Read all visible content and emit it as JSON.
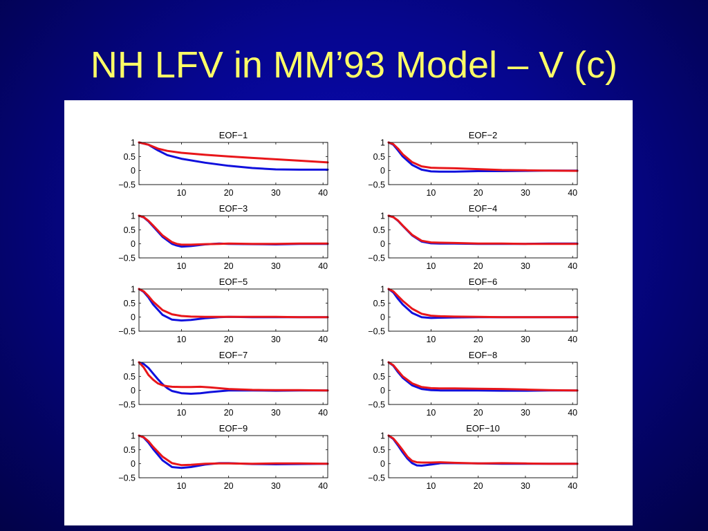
{
  "slide": {
    "title": "NH LFV in MM’93 Model – V (c)"
  },
  "colors": {
    "background": "#06068f",
    "title_text": "#ffff66",
    "series_a": "#1010dd",
    "series_b": "#e8161a"
  },
  "chart_data": [
    {
      "type": "line",
      "title": "EOF−1",
      "xlim": [
        1,
        41
      ],
      "ylim": [
        -0.5,
        1
      ],
      "xticks": [
        10,
        20,
        30,
        40
      ],
      "yticks": [
        1,
        0.5,
        0,
        -0.5
      ],
      "ytick_labels": [
        "1",
        "0.5",
        "0",
        "−0.5"
      ],
      "x": [
        1,
        3,
        5,
        7,
        10,
        15,
        20,
        25,
        30,
        35,
        41
      ],
      "series": [
        {
          "color": "#1010dd",
          "values": [
            1.0,
            0.92,
            0.72,
            0.55,
            0.42,
            0.28,
            0.17,
            0.09,
            0.04,
            0.03,
            0.03
          ]
        },
        {
          "color": "#e8161a",
          "values": [
            1.0,
            0.92,
            0.78,
            0.7,
            0.63,
            0.56,
            0.5,
            0.45,
            0.4,
            0.35,
            0.29
          ]
        }
      ]
    },
    {
      "type": "line",
      "title": "EOF−2",
      "xlim": [
        1,
        41
      ],
      "ylim": [
        -0.5,
        1
      ],
      "xticks": [
        10,
        20,
        30,
        40
      ],
      "yticks": [
        1,
        0.5,
        0,
        -0.5
      ],
      "ytick_labels": [
        "1",
        "0.5",
        "0",
        "−0.5"
      ],
      "x": [
        1,
        2,
        3,
        4,
        6,
        8,
        10,
        12,
        15,
        20,
        25,
        30,
        35,
        41
      ],
      "series": [
        {
          "color": "#1010dd",
          "values": [
            1.0,
            0.92,
            0.72,
            0.5,
            0.2,
            0.03,
            -0.03,
            -0.04,
            -0.04,
            -0.02,
            -0.02,
            -0.01,
            0.0,
            0.0
          ]
        },
        {
          "color": "#e8161a",
          "values": [
            1.0,
            0.94,
            0.78,
            0.58,
            0.3,
            0.15,
            0.1,
            0.09,
            0.08,
            0.05,
            0.02,
            0.01,
            0.0,
            -0.01
          ]
        }
      ]
    },
    {
      "type": "line",
      "title": "EOF−3",
      "xlim": [
        1,
        41
      ],
      "ylim": [
        -0.5,
        1
      ],
      "xticks": [
        10,
        20,
        30,
        40
      ],
      "yticks": [
        1,
        0.5,
        0,
        -0.5
      ],
      "ytick_labels": [
        "1",
        "0.5",
        "0",
        "−0.5"
      ],
      "x": [
        1,
        2,
        3,
        4,
        6,
        8,
        9,
        10,
        12,
        15,
        18,
        20,
        25,
        30,
        35,
        41
      ],
      "series": [
        {
          "color": "#1010dd",
          "values": [
            1.0,
            0.94,
            0.8,
            0.62,
            0.25,
            0.0,
            -0.06,
            -0.1,
            -0.08,
            -0.02,
            0.01,
            0.0,
            -0.01,
            -0.02,
            0.0,
            0.0
          ]
        },
        {
          "color": "#e8161a",
          "values": [
            1.0,
            0.95,
            0.82,
            0.65,
            0.3,
            0.06,
            0.0,
            -0.03,
            -0.03,
            -0.01,
            0.0,
            0.01,
            0.0,
            0.0,
            0.01,
            0.01
          ]
        }
      ]
    },
    {
      "type": "line",
      "title": "EOF−4",
      "xlim": [
        1,
        41
      ],
      "ylim": [
        -0.5,
        1
      ],
      "xticks": [
        10,
        20,
        30,
        40
      ],
      "yticks": [
        1,
        0.5,
        0,
        -0.5
      ],
      "ytick_labels": [
        "1",
        "0.5",
        "0",
        "−0.5"
      ],
      "x": [
        1,
        2,
        3,
        4,
        6,
        8,
        10,
        12,
        15,
        20,
        25,
        30,
        35,
        41
      ],
      "series": [
        {
          "color": "#1010dd",
          "values": [
            1.0,
            0.95,
            0.82,
            0.64,
            0.3,
            0.08,
            0.02,
            0.01,
            0.01,
            0.0,
            0.0,
            0.0,
            0.01,
            0.01
          ]
        },
        {
          "color": "#e8161a",
          "values": [
            1.0,
            0.95,
            0.83,
            0.65,
            0.32,
            0.11,
            0.05,
            0.04,
            0.03,
            0.01,
            0.01,
            0.0,
            0.0,
            0.0
          ]
        }
      ]
    },
    {
      "type": "line",
      "title": "EOF−5",
      "xlim": [
        1,
        41
      ],
      "ylim": [
        -0.5,
        1
      ],
      "xticks": [
        10,
        20,
        30,
        40
      ],
      "yticks": [
        1,
        0.5,
        0,
        -0.5
      ],
      "ytick_labels": [
        "1",
        "0.5",
        "0",
        "−0.5"
      ],
      "x": [
        1,
        2,
        3,
        4,
        6,
        8,
        10,
        12,
        15,
        18,
        20,
        25,
        30,
        35,
        41
      ],
      "series": [
        {
          "color": "#1010dd",
          "values": [
            1.0,
            0.9,
            0.7,
            0.45,
            0.08,
            -0.09,
            -0.12,
            -0.1,
            -0.04,
            0.0,
            0.01,
            0.0,
            0.0,
            0.0,
            0.0
          ]
        },
        {
          "color": "#e8161a",
          "values": [
            1.0,
            0.92,
            0.75,
            0.55,
            0.25,
            0.1,
            0.04,
            0.02,
            0.01,
            0.01,
            0.01,
            0.01,
            0.01,
            0.0,
            0.0
          ]
        }
      ]
    },
    {
      "type": "line",
      "title": "EOF−6",
      "xlim": [
        1,
        41
      ],
      "ylim": [
        -0.5,
        1
      ],
      "xticks": [
        10,
        20,
        30,
        40
      ],
      "yticks": [
        1,
        0.5,
        0,
        -0.5
      ],
      "ytick_labels": [
        "1",
        "0.5",
        "0",
        "−0.5"
      ],
      "x": [
        1,
        2,
        3,
        4,
        6,
        8,
        10,
        12,
        15,
        20,
        25,
        30,
        35,
        41
      ],
      "series": [
        {
          "color": "#1010dd",
          "values": [
            1.0,
            0.88,
            0.65,
            0.45,
            0.15,
            0.0,
            -0.03,
            -0.02,
            -0.01,
            0.0,
            0.0,
            0.0,
            0.0,
            0.0
          ]
        },
        {
          "color": "#e8161a",
          "values": [
            1.0,
            0.92,
            0.75,
            0.58,
            0.3,
            0.12,
            0.05,
            0.03,
            0.02,
            0.01,
            0.0,
            0.0,
            0.0,
            0.0
          ]
        }
      ]
    },
    {
      "type": "line",
      "title": "EOF−7",
      "xlim": [
        1,
        41
      ],
      "ylim": [
        -0.5,
        1
      ],
      "xticks": [
        10,
        20,
        30,
        40
      ],
      "yticks": [
        1,
        0.5,
        0,
        -0.5
      ],
      "ytick_labels": [
        "1",
        "0.5",
        "0",
        "−0.5"
      ],
      "x": [
        1,
        2,
        3,
        4,
        5,
        6,
        7,
        8,
        10,
        12,
        14,
        16,
        20,
        25,
        30,
        35,
        41
      ],
      "series": [
        {
          "color": "#1010dd",
          "values": [
            1.0,
            0.94,
            0.8,
            0.6,
            0.4,
            0.22,
            0.08,
            -0.02,
            -0.1,
            -0.12,
            -0.1,
            -0.06,
            0.0,
            0.0,
            -0.01,
            0.0,
            0.0
          ]
        },
        {
          "color": "#e8161a",
          "values": [
            1.0,
            0.82,
            0.55,
            0.38,
            0.25,
            0.18,
            0.15,
            0.13,
            0.12,
            0.12,
            0.13,
            0.11,
            0.05,
            0.02,
            0.01,
            0.01,
            0.0
          ]
        }
      ]
    },
    {
      "type": "line",
      "title": "EOF−8",
      "xlim": [
        1,
        41
      ],
      "ylim": [
        -0.5,
        1
      ],
      "xticks": [
        10,
        20,
        30,
        40
      ],
      "yticks": [
        1,
        0.5,
        0,
        -0.5
      ],
      "ytick_labels": [
        "1",
        "0.5",
        "0",
        "−0.5"
      ],
      "x": [
        1,
        2,
        3,
        4,
        6,
        8,
        10,
        12,
        15,
        20,
        25,
        30,
        35,
        41
      ],
      "series": [
        {
          "color": "#1010dd",
          "values": [
            1.0,
            0.88,
            0.65,
            0.45,
            0.18,
            0.05,
            0.01,
            0.0,
            0.0,
            0.0,
            -0.01,
            -0.01,
            0.0,
            0.0
          ]
        },
        {
          "color": "#e8161a",
          "values": [
            1.0,
            0.9,
            0.7,
            0.5,
            0.25,
            0.12,
            0.08,
            0.07,
            0.07,
            0.06,
            0.05,
            0.03,
            0.01,
            0.0
          ]
        }
      ]
    },
    {
      "type": "line",
      "title": "EOF−9",
      "xlim": [
        1,
        41
      ],
      "ylim": [
        -0.5,
        1
      ],
      "xticks": [
        10,
        20,
        30,
        40
      ],
      "yticks": [
        1,
        0.5,
        0,
        -0.5
      ],
      "ytick_labels": [
        "1",
        "0.5",
        "0",
        "−0.5"
      ],
      "x": [
        1,
        2,
        3,
        4,
        6,
        8,
        10,
        12,
        15,
        18,
        20,
        25,
        30,
        35,
        41
      ],
      "series": [
        {
          "color": "#1010dd",
          "values": [
            1.0,
            0.93,
            0.75,
            0.52,
            0.12,
            -0.12,
            -0.15,
            -0.12,
            -0.03,
            0.02,
            0.02,
            -0.01,
            -0.02,
            -0.01,
            0.0
          ]
        },
        {
          "color": "#e8161a",
          "values": [
            1.0,
            0.94,
            0.8,
            0.6,
            0.25,
            0.02,
            -0.05,
            -0.04,
            0.0,
            0.01,
            0.01,
            0.0,
            0.01,
            0.01,
            0.0
          ]
        }
      ]
    },
    {
      "type": "line",
      "title": "EOF−10",
      "xlim": [
        1,
        41
      ],
      "ylim": [
        -0.5,
        1
      ],
      "xticks": [
        10,
        20,
        30,
        40
      ],
      "yticks": [
        1,
        0.5,
        0,
        -0.5
      ],
      "ytick_labels": [
        "1",
        "0.5",
        "0",
        "−0.5"
      ],
      "x": [
        1,
        2,
        3,
        4,
        5,
        6,
        7,
        8,
        10,
        12,
        15,
        20,
        25,
        30,
        35,
        41
      ],
      "series": [
        {
          "color": "#1010dd",
          "values": [
            1.0,
            0.88,
            0.65,
            0.4,
            0.18,
            0.02,
            -0.06,
            -0.07,
            -0.03,
            0.02,
            0.02,
            0.01,
            0.0,
            0.0,
            0.0,
            0.0
          ]
        },
        {
          "color": "#e8161a",
          "values": [
            1.0,
            0.9,
            0.7,
            0.48,
            0.25,
            0.1,
            0.05,
            0.04,
            0.04,
            0.05,
            0.03,
            0.01,
            0.02,
            0.01,
            0.0,
            0.0
          ]
        }
      ]
    }
  ]
}
